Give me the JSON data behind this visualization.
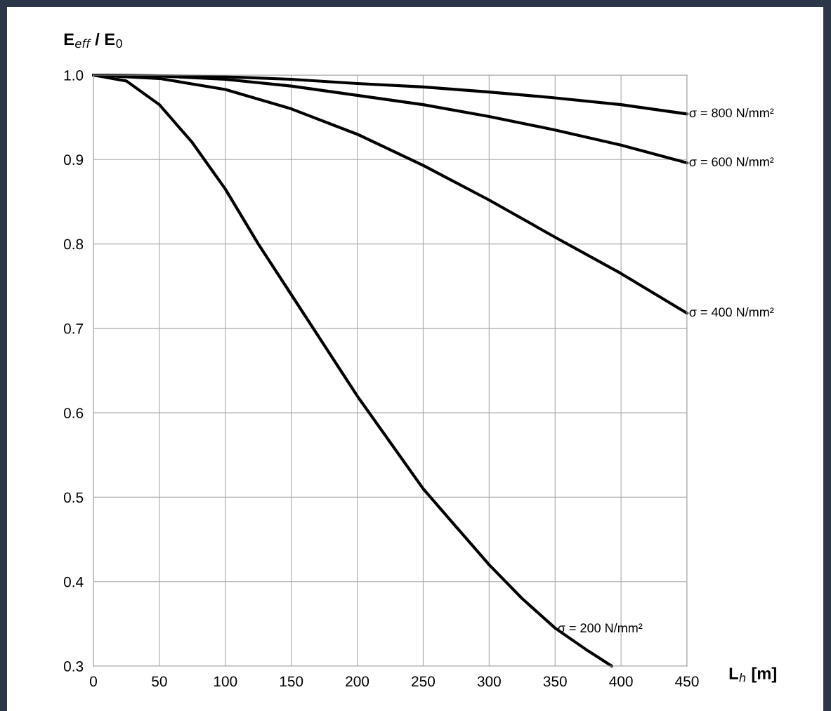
{
  "chart_data": {
    "type": "line",
    "ylabel": "E$_{eff}$ / E$_{0}$",
    "xlabel": "L$_{h}$ [m]",
    "xlim": [
      0,
      450
    ],
    "ylim": [
      0.3,
      1.0
    ],
    "xticks": [
      0,
      50,
      100,
      150,
      200,
      250,
      300,
      350,
      400,
      450
    ],
    "yticks": [
      0.3,
      0.4,
      0.5,
      0.6,
      0.7,
      0.8,
      0.9,
      {
        "value": 1.0,
        "label": "1.0"
      }
    ],
    "grid": true,
    "legend": false,
    "marker": "none",
    "line_style": "solid",
    "series": [
      {
        "name": "σ = 800 N/mm²",
        "color": "#000000",
        "x": [
          0,
          50,
          100,
          150,
          200,
          250,
          300,
          350,
          400,
          450
        ],
        "values": [
          1.0,
          0.999,
          0.998,
          0.995,
          0.99,
          0.986,
          0.98,
          0.973,
          0.965,
          0.954
        ]
      },
      {
        "name": "σ = 600 N/mm²",
        "color": "#000000",
        "x": [
          0,
          50,
          100,
          150,
          200,
          250,
          300,
          350,
          400,
          450
        ],
        "values": [
          1.0,
          0.999,
          0.995,
          0.987,
          0.976,
          0.965,
          0.951,
          0.935,
          0.917,
          0.896
        ]
      },
      {
        "name": "σ = 400 N/mm²",
        "color": "#000000",
        "x": [
          0,
          50,
          100,
          150,
          200,
          250,
          300,
          350,
          400,
          450
        ],
        "values": [
          1.0,
          0.996,
          0.983,
          0.96,
          0.93,
          0.893,
          0.852,
          0.808,
          0.765,
          0.718
        ]
      },
      {
        "name": "σ = 200 N/mm²",
        "color": "#000000",
        "x": [
          0,
          25,
          50,
          75,
          100,
          125,
          150,
          175,
          200,
          225,
          250,
          275,
          300,
          325,
          350,
          375,
          393
        ],
        "values": [
          1.0,
          0.993,
          0.965,
          0.92,
          0.865,
          0.8,
          0.74,
          0.68,
          0.62,
          0.565,
          0.51,
          0.465,
          0.42,
          0.38,
          0.345,
          0.318,
          0.3
        ]
      }
    ]
  }
}
